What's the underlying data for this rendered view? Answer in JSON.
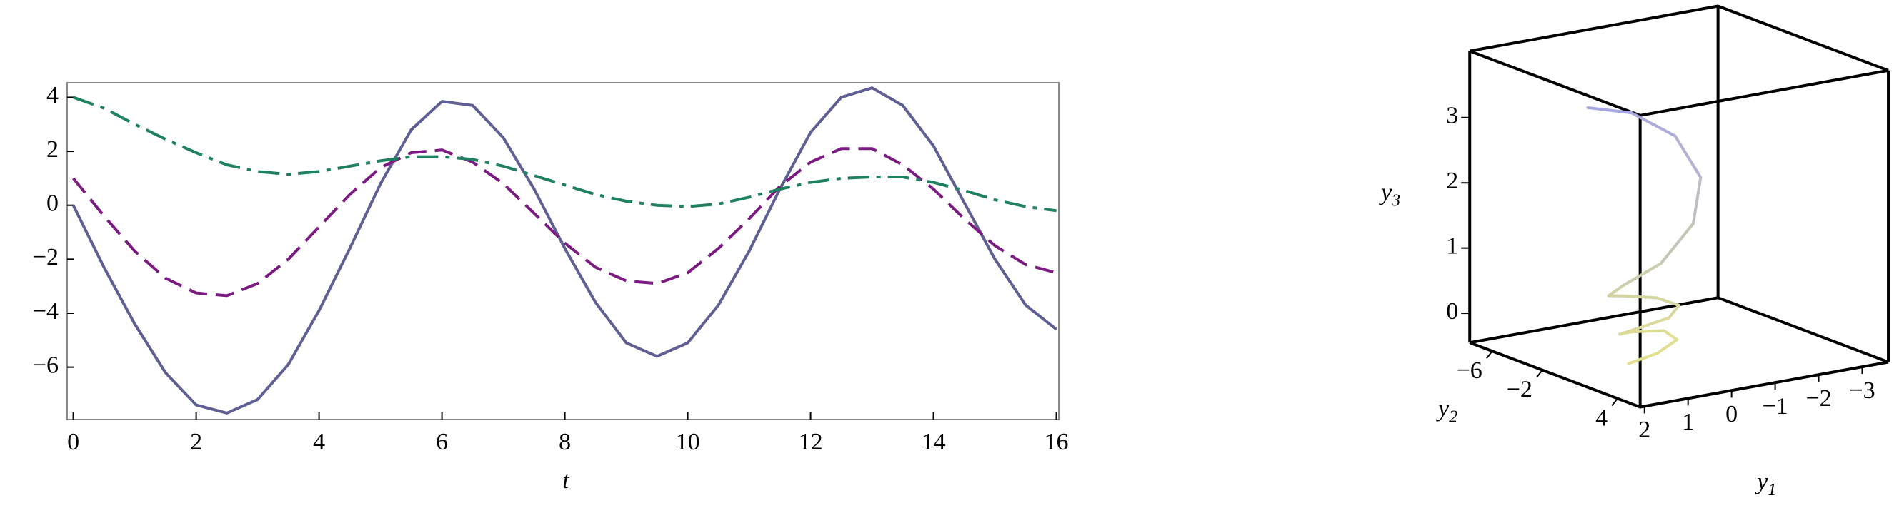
{
  "chart_data": [
    {
      "type": "line",
      "xlabel": "t",
      "x": [
        0,
        0.5,
        1,
        1.5,
        2,
        2.5,
        3,
        3.5,
        4,
        4.5,
        5,
        5.5,
        6,
        6.5,
        7,
        7.5,
        8,
        8.5,
        9,
        9.5,
        10,
        10.5,
        11,
        11.5,
        12,
        12.5,
        13,
        13.5,
        14,
        14.5,
        15,
        15.5,
        16
      ],
      "series": [
        {
          "color": "#5f5f94",
          "dash": "solid",
          "values": [
            0,
            -2.3,
            -4.4,
            -6.2,
            -7.4,
            -7.7,
            -7.2,
            -5.9,
            -3.9,
            -1.6,
            0.8,
            2.8,
            3.85,
            3.7,
            2.5,
            0.6,
            -1.6,
            -3.6,
            -5.1,
            -5.6,
            -5.1,
            -3.7,
            -1.7,
            0.6,
            2.7,
            4.0,
            4.35,
            3.7,
            2.2,
            0.1,
            -2.0,
            -3.7,
            -4.6
          ]
        },
        {
          "color": "#7b1a80",
          "dash": "dashed",
          "values": [
            1,
            -0.4,
            -1.7,
            -2.7,
            -3.25,
            -3.35,
            -2.9,
            -2.0,
            -0.8,
            0.4,
            1.4,
            1.95,
            2.05,
            1.6,
            0.8,
            -0.3,
            -1.4,
            -2.3,
            -2.8,
            -2.9,
            -2.5,
            -1.6,
            -0.5,
            0.7,
            1.6,
            2.1,
            2.1,
            1.5,
            0.6,
            -0.5,
            -1.5,
            -2.2,
            -2.5
          ]
        },
        {
          "color": "#1e8060",
          "dash": "dashdot",
          "values": [
            4,
            3.6,
            3.0,
            2.45,
            1.95,
            1.5,
            1.25,
            1.15,
            1.25,
            1.45,
            1.65,
            1.8,
            1.8,
            1.7,
            1.45,
            1.1,
            0.75,
            0.4,
            0.15,
            0.0,
            -0.05,
            0.05,
            0.3,
            0.6,
            0.85,
            1.0,
            1.05,
            1.05,
            0.85,
            0.55,
            0.2,
            -0.05,
            -0.2
          ]
        }
      ],
      "xlim": [
        -0.1,
        16.04
      ],
      "ylim": [
        -7.94,
        4.54
      ],
      "xticks": [
        0,
        2,
        4,
        6,
        8,
        10,
        12,
        14,
        16
      ],
      "yticks": [
        {
          "value": -6,
          "label": "−6"
        },
        {
          "value": -4,
          "label": "−4"
        },
        {
          "value": -2,
          "label": "−2"
        },
        0,
        2,
        4
      ]
    },
    {
      "type": "line3d",
      "xlabel": [
        "y",
        "1"
      ],
      "ylabel": [
        "y",
        "2"
      ],
      "zlabel": [
        "y",
        "3"
      ],
      "x": [
        1.2,
        0.2,
        -0.6,
        -0.9,
        -0.5,
        0.3,
        1.0,
        1.1,
        0.6,
        -0.1,
        -0.4,
        0,
        0.7,
        0.9,
        0.5,
        -0.2,
        -0.3,
        0.3,
        0.9
      ],
      "y": [
        -1.5,
        -1.5,
        -0.8,
        0.2,
        1.0,
        1.2,
        0.6,
        -0.2,
        -0.7,
        -0.5,
        0.2,
        0.8,
        0.6,
        0,
        -0.5,
        -0.3,
        0.4,
        0.9,
        0.7
      ],
      "z": [
        3.5,
        3.3,
        2.9,
        2.3,
        1.7,
        1.2,
        0.9,
        0.7,
        0.6,
        0.5,
        0.4,
        0.3,
        0.2,
        0.1,
        0.05,
        0,
        -0.1,
        -0.2,
        -0.3
      ],
      "colors": [
        "#e4e48c",
        "#9c9cf0"
      ],
      "xlim": [
        2.1,
        -3.6
      ],
      "ylim": [
        -7.8,
        5.8
      ],
      "zlim": [
        -0.45,
        4.02
      ],
      "xticks": [
        2,
        1,
        0,
        {
          "value": -1,
          "label": "−1"
        },
        {
          "value": -2,
          "label": "−2"
        },
        {
          "value": -3,
          "label": "−3"
        }
      ],
      "yticks": [
        {
          "value": -6,
          "label": "−6"
        },
        {
          "value": -2,
          "label": "−2"
        },
        4
      ],
      "zticks": [
        0,
        1,
        2,
        3
      ]
    }
  ]
}
